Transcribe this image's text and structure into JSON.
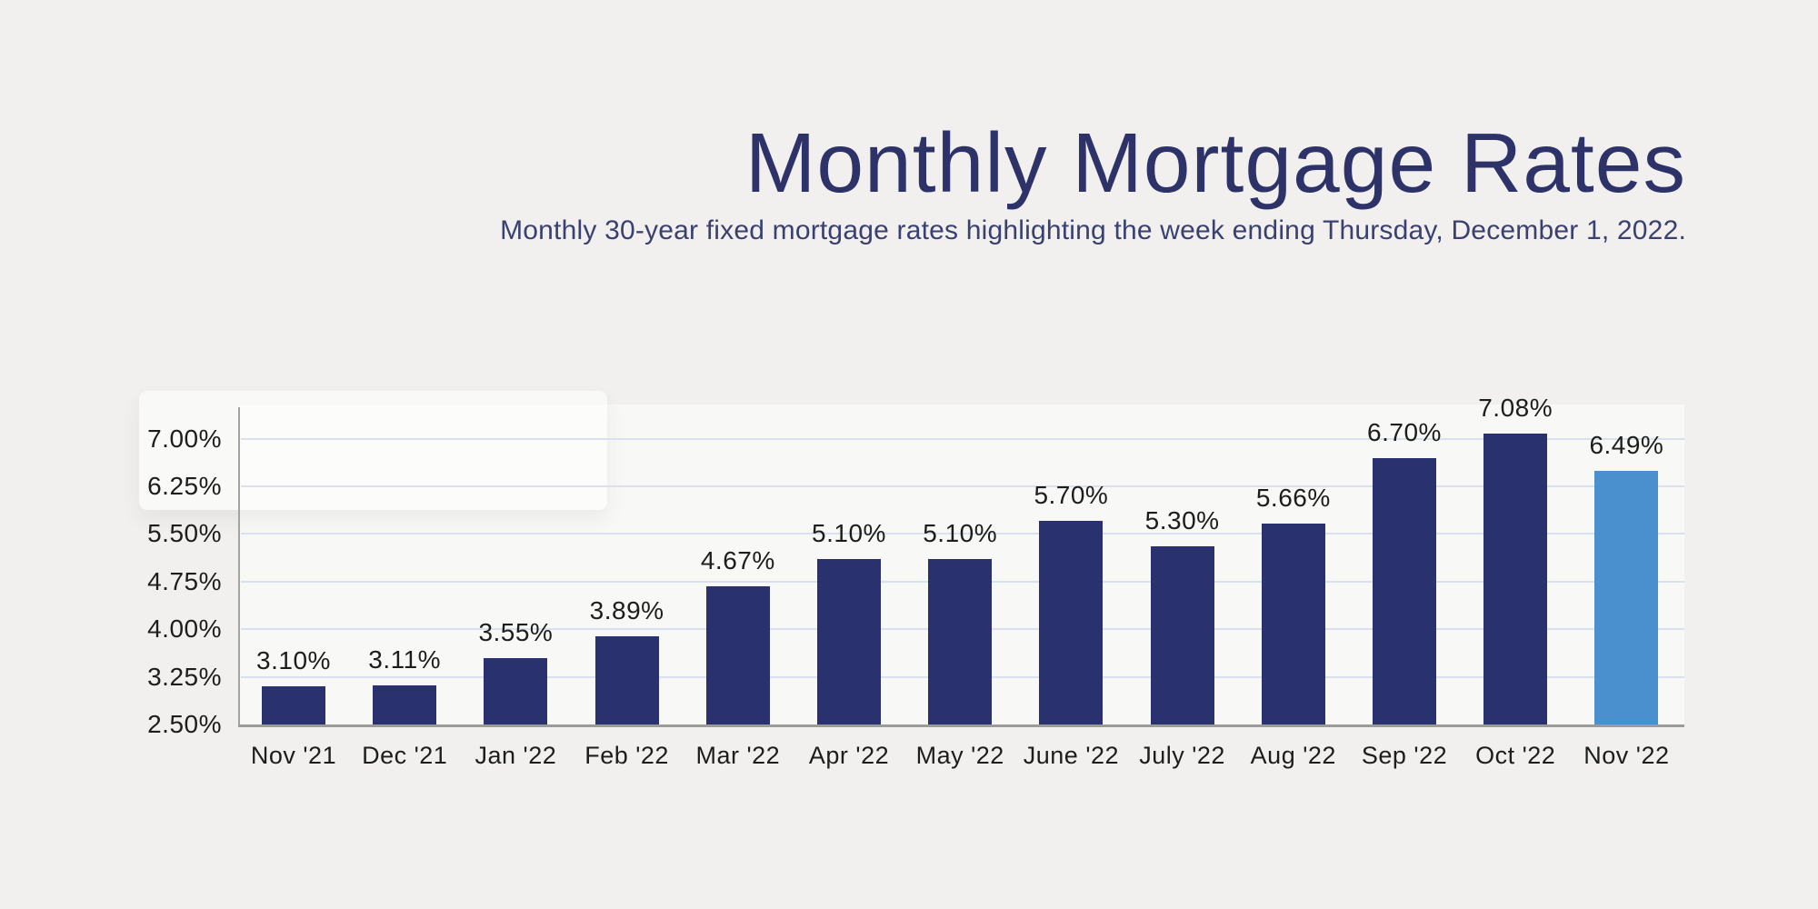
{
  "chart_data": {
    "type": "bar",
    "title": "Monthly Mortgage Rates",
    "subtitle": "Monthly 30-year fixed mortgage rates highlighting the week ending Thursday, December 1, 2022.",
    "categories": [
      "Nov '21",
      "Dec '21",
      "Jan '22",
      "Feb '22",
      "Mar '22",
      "Apr '22",
      "May '22",
      "June '22",
      "July '22",
      "Aug '22",
      "Sep '22",
      "Oct '22",
      "Nov '22"
    ],
    "values": [
      3.1,
      3.11,
      3.55,
      3.89,
      4.67,
      5.1,
      5.1,
      5.7,
      5.3,
      5.66,
      6.7,
      7.08,
      6.49
    ],
    "value_labels": [
      "3.10%",
      "3.11%",
      "3.55%",
      "3.89%",
      "4.67%",
      "5.10%",
      "5.10%",
      "5.70%",
      "5.30%",
      "5.66%",
      "6.70%",
      "7.08%",
      "6.49%"
    ],
    "y_ticks": [
      "2.50%",
      "3.25%",
      "4.00%",
      "4.75%",
      "5.50%",
      "6.25%",
      "7.00%"
    ],
    "y_tick_values": [
      2.5,
      3.25,
      4.0,
      4.75,
      5.5,
      6.25,
      7.0
    ],
    "ylim": [
      2.5,
      7.55
    ],
    "xlabel": "",
    "ylabel": "",
    "grid": true,
    "legend": false,
    "highlight_index": 12,
    "colors": {
      "bar": "#2a316f",
      "highlight_bar": "#4a90ce",
      "title": "#2d3369",
      "subtitle": "#3a4170",
      "gridline": "#d9e0ef",
      "axis_line": "#9b9b98",
      "axis_line_vertical": "#a3a3a0",
      "label_text": "#1d1d1b",
      "background": "#f1f0ee",
      "plot_background": "#f8f8f6",
      "overlay": "rgba(255,255,255,0.6)"
    }
  }
}
